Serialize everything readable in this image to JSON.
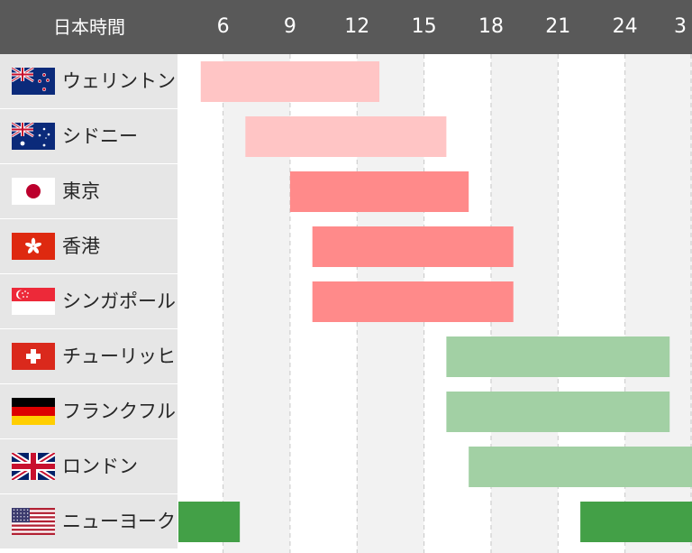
{
  "header": {
    "title": "日本時間"
  },
  "chart_data": {
    "type": "bar",
    "orientation": "horizontal",
    "x_unit": "hours (JST)",
    "x_ticks": [
      "6",
      "9",
      "12",
      "15",
      "18",
      "21",
      "24",
      "3"
    ],
    "xlim": [
      4,
      27
    ],
    "grid": true,
    "rows": [
      {
        "city": "ウェリントン",
        "flag": "new-zealand-flag",
        "start": 5,
        "end": 13,
        "color": "#ffc5c5"
      },
      {
        "city": "シドニー",
        "flag": "australia-flag",
        "start": 7,
        "end": 16,
        "color": "#ffc5c5"
      },
      {
        "city": "東京",
        "flag": "japan-flag",
        "start": 9,
        "end": 17,
        "color": "#ff8a8a"
      },
      {
        "city": "香港",
        "flag": "hong-kong-flag",
        "start": 10,
        "end": 19,
        "color": "#ff8a8a"
      },
      {
        "city": "シンガポール",
        "flag": "singapore-flag",
        "start": 10,
        "end": 19,
        "color": "#ff8a8a"
      },
      {
        "city": "チューリッヒ",
        "flag": "switzerland-flag",
        "start": 16,
        "end": 26,
        "color": "#a2d0a4"
      },
      {
        "city": "フランクフルト",
        "flag": "germany-flag",
        "start": 16,
        "end": 26,
        "color": "#a2d0a4"
      },
      {
        "city": "ロンドン",
        "flag": "uk-flag",
        "start": 17,
        "end": 27,
        "color": "#a2d0a4"
      },
      {
        "city": "ニューヨーク",
        "flag": "usa-flag",
        "segments": [
          [
            4,
            6.75
          ],
          [
            22,
            27
          ]
        ],
        "color": "#43a047"
      }
    ]
  }
}
